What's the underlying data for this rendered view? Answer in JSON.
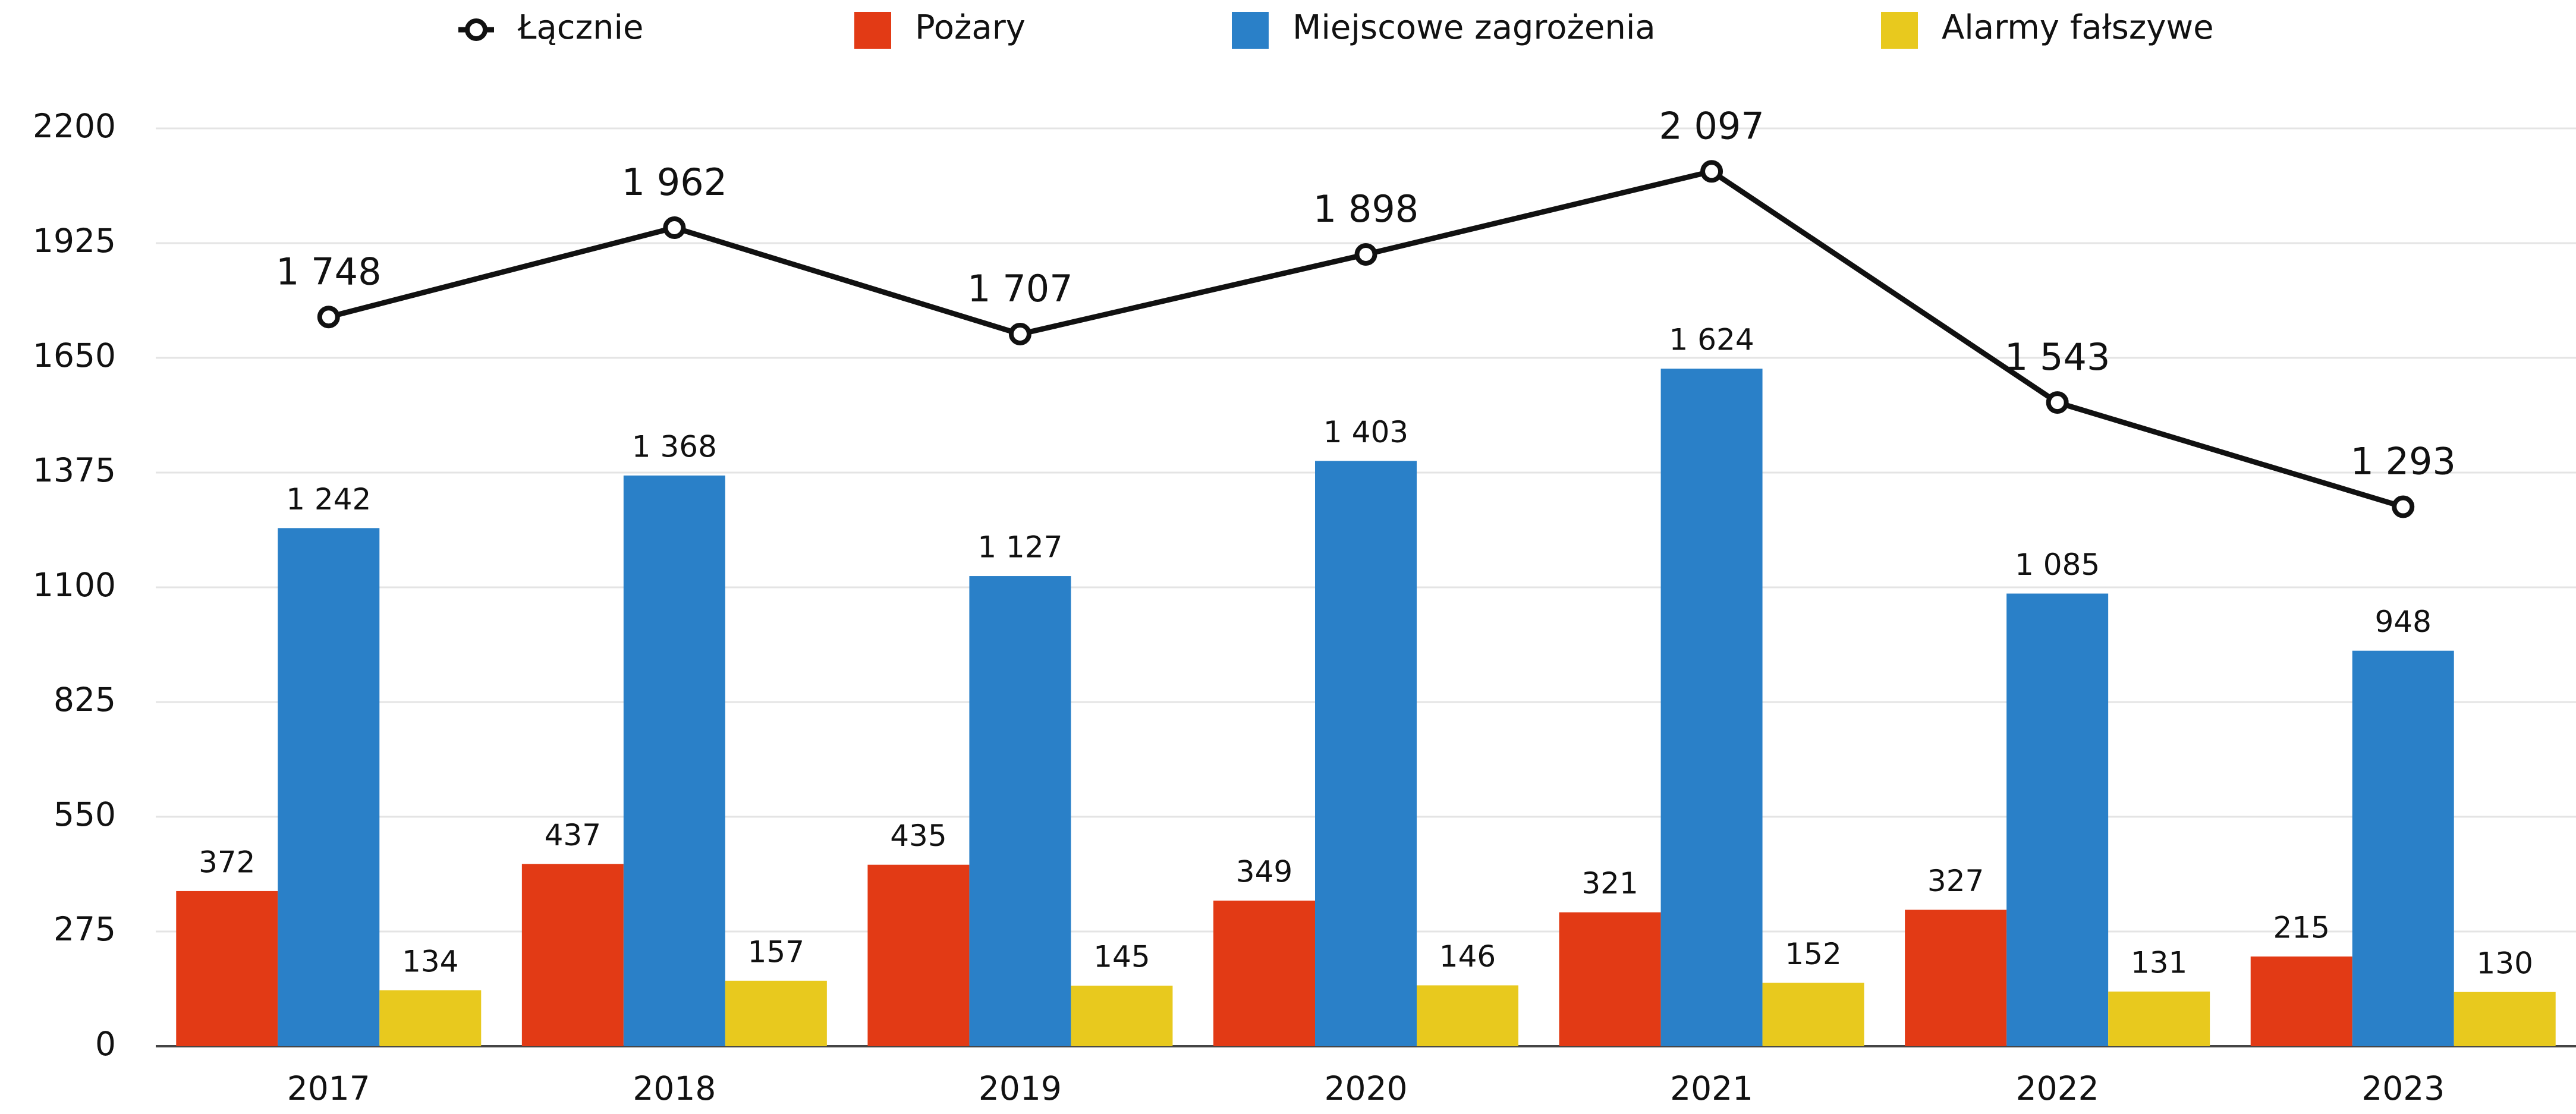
{
  "chart_data": {
    "type": "bar",
    "categories": [
      "2017",
      "2018",
      "2019",
      "2020",
      "2021",
      "2022",
      "2023"
    ],
    "series": [
      {
        "name": "Łącznie",
        "type": "line",
        "color": "#111111",
        "values": [
          1748,
          1962,
          1707,
          1898,
          2097,
          1543,
          1293
        ],
        "value_labels": [
          "1 748",
          "1 962",
          "1 707",
          "1 898",
          "2 097",
          "1 543",
          "1 293"
        ]
      },
      {
        "name": "Pożary",
        "color": "#e23a15",
        "values": [
          372,
          437,
          435,
          349,
          321,
          327,
          215
        ]
      },
      {
        "name": "Miejscowe zagrożenia",
        "color": "#2a80c8",
        "values": [
          1242,
          1368,
          1127,
          1403,
          1624,
          1085,
          948
        ],
        "value_labels": [
          "1 242",
          "1 368",
          "1 127",
          "1 403",
          "1 624",
          "1 085",
          "948"
        ]
      },
      {
        "name": "Alarmy fałszywe",
        "color": "#e8c91e",
        "values": [
          134,
          157,
          145,
          146,
          152,
          131,
          130
        ]
      }
    ],
    "ylim": [
      0,
      2200
    ],
    "yticks": [
      0,
      275,
      550,
      825,
      1100,
      1375,
      1650,
      1925,
      2200
    ],
    "grid": true,
    "legend": "top"
  }
}
